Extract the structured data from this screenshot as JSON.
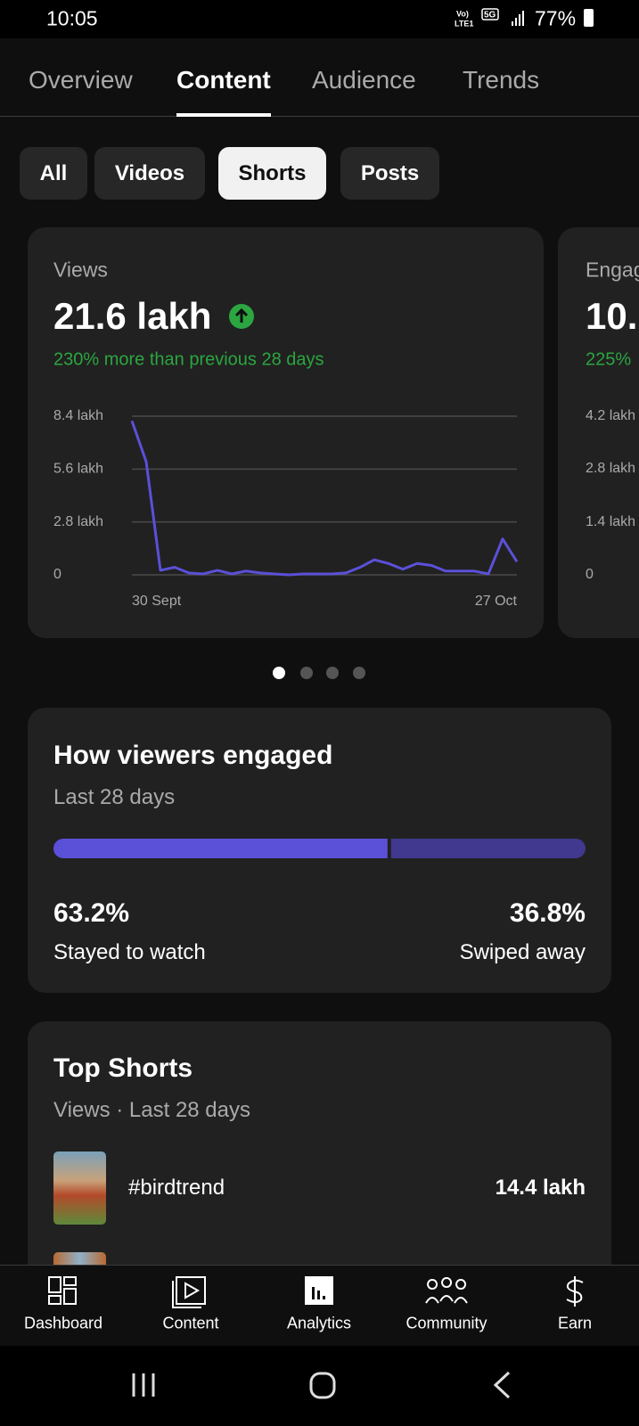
{
  "status_bar": {
    "time": "10:05",
    "battery": "77%"
  },
  "tabs": {
    "items": [
      "Overview",
      "Content",
      "Audience",
      "Trends"
    ],
    "selected": 1
  },
  "chips": {
    "items": [
      "All",
      "Videos",
      "Shorts",
      "Posts"
    ],
    "selected": 2
  },
  "views_card": {
    "label": "Views",
    "total": "21.6 lakh",
    "change": "230% more than previous 28 days",
    "chart_data": {
      "type": "line",
      "color": "#5b50d8",
      "categories": [
        "30 Sept",
        null,
        null,
        null,
        null,
        null,
        null,
        null,
        null,
        null,
        null,
        null,
        null,
        null,
        null,
        null,
        null,
        null,
        null,
        null,
        null,
        null,
        null,
        null,
        null,
        null,
        null,
        "27 Oct"
      ],
      "values": [
        8.15,
        6.0,
        0.24,
        0.4,
        0.1,
        0.05,
        0.24,
        0.05,
        0.2,
        0.1,
        0.05,
        0,
        0.05,
        0.05,
        0.05,
        0.1,
        0.4,
        0.8,
        0.6,
        0.3,
        0.6,
        0.5,
        0.2,
        0.2,
        0.2,
        0.05,
        1.9,
        0.7
      ],
      "ylim": [
        0,
        8.4
      ],
      "yticks": [
        0,
        {
          "value": 2.8,
          "label": "2.8 lakh"
        },
        {
          "value": 5.6,
          "label": "5.6 lakh"
        },
        {
          "value": 8.4,
          "label": "8.4 lakh"
        }
      ],
      "grid": true
    }
  },
  "engagement_card": {
    "label": "Engag",
    "total": "10.",
    "change": "225%",
    "yticks": [
      0,
      {
        "value": 1.4,
        "label": "1.4 lakh"
      },
      {
        "value": 2.8,
        "label": "2.8 lakh"
      },
      {
        "value": 4.2,
        "label": "4.2 lakh"
      }
    ],
    "ylim": [
      0,
      4.2
    ]
  },
  "engaged": {
    "title": "How viewers engaged",
    "subtitle": "Last 28 days",
    "chart_data": {
      "type": "bar",
      "values": [
        63.2,
        36.8
      ],
      "value_labels": [
        "63.2%",
        "36.8%"
      ],
      "categories": [
        "Stayed to watch",
        "Swiped away"
      ],
      "colors": [
        "#5b50d8",
        "#40398f"
      ]
    }
  },
  "top_shorts": {
    "title": "Top Shorts",
    "subtitle": "Views · Last 28 days",
    "items": [
      {
        "title": "#birdtrend",
        "views": "14.4 lakh"
      }
    ]
  },
  "nav": {
    "items": [
      "Dashboard",
      "Content",
      "Analytics",
      "Community",
      "Earn"
    ],
    "selected": 2
  }
}
